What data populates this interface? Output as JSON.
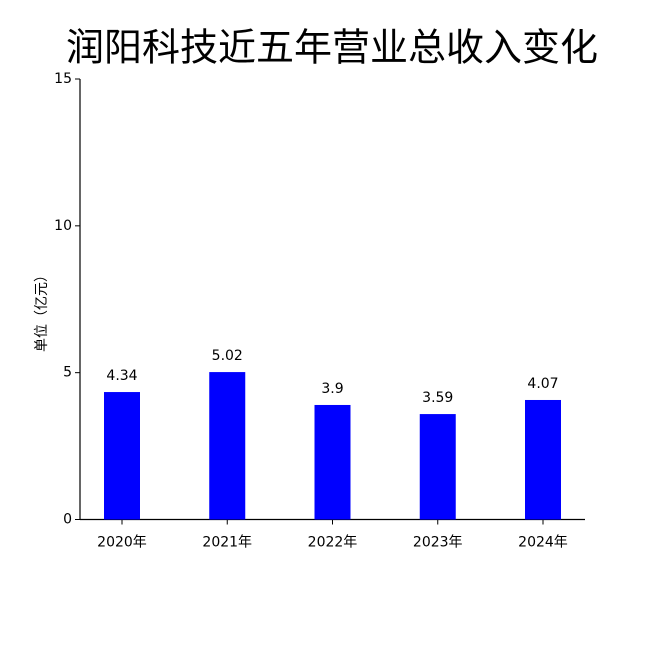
{
  "chart_data": {
    "type": "bar",
    "title": "润阳科技近五年营业总收入变化",
    "y_label": "单位（亿元）",
    "categories": [
      "2020年",
      "2021年",
      "2022年",
      "2023年",
      "2024年"
    ],
    "values": [
      4.34,
      5.02,
      3.9,
      3.59,
      4.07
    ],
    "color": "#0000ff",
    "ylim": [
      0,
      15
    ],
    "yticks": [
      0,
      5,
      10,
      15
    ],
    "grid": false
  }
}
